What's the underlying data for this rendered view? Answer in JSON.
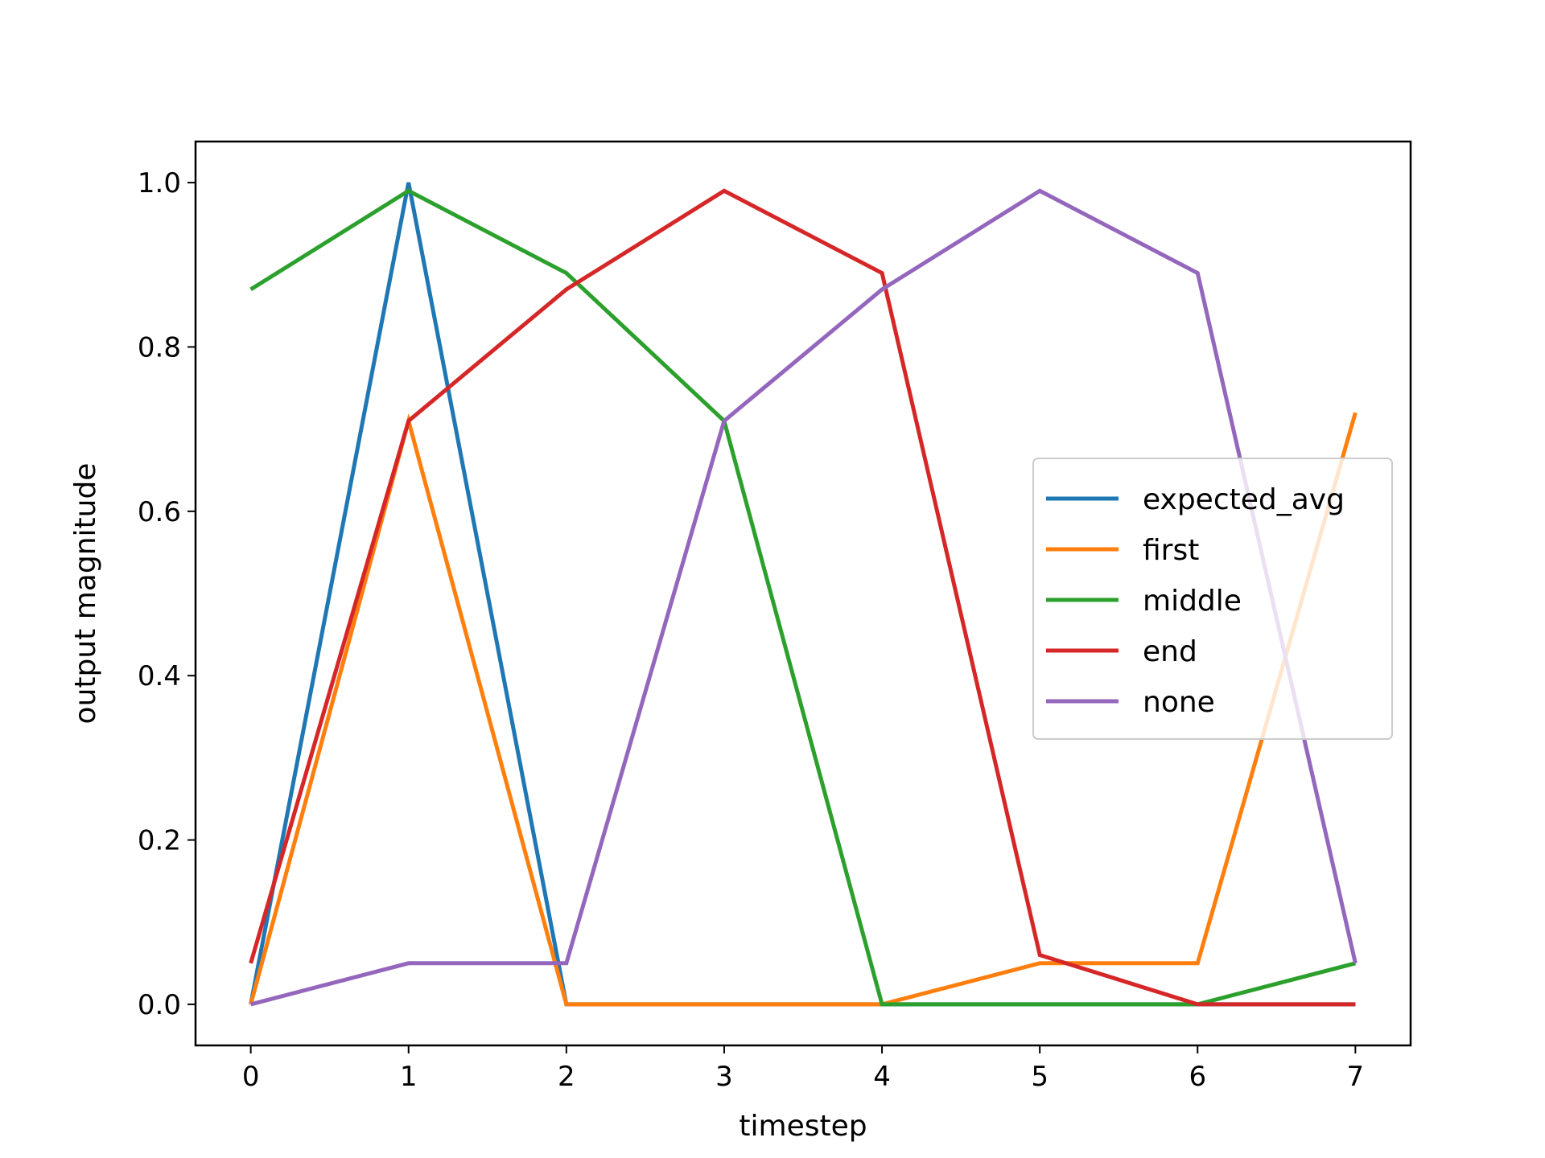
{
  "chart_data": {
    "type": "line",
    "title": "",
    "xlabel": "timestep",
    "ylabel": "output magnitude",
    "x": [
      0,
      1,
      2,
      3,
      4,
      5,
      6,
      7
    ],
    "xticks": [
      "0",
      "1",
      "2",
      "3",
      "4",
      "5",
      "6",
      "7"
    ],
    "yticks": [
      "0.0",
      "0.2",
      "0.4",
      "0.6",
      "0.8",
      "1.0"
    ],
    "xlim": [
      -0.35,
      7.35
    ],
    "ylim": [
      -0.05,
      1.05
    ],
    "grid": false,
    "legend_position": "center-right",
    "series": [
      {
        "name": "expected_avg",
        "color": "#1f77b4",
        "values": [
          0.0,
          1.0,
          0.0,
          0.0,
          0.0,
          0.0,
          0.0,
          0.0
        ]
      },
      {
        "name": "first",
        "color": "#ff7f0e",
        "values": [
          0.0,
          0.71,
          0.0,
          0.0,
          0.0,
          0.05,
          0.05,
          0.72
        ]
      },
      {
        "name": "middle",
        "color": "#2ca02c",
        "values": [
          0.87,
          0.99,
          0.89,
          0.71,
          0.0,
          0.0,
          0.0,
          0.05
        ]
      },
      {
        "name": "end",
        "color": "#d62728",
        "values": [
          0.05,
          0.71,
          0.87,
          0.99,
          0.89,
          0.06,
          0.0,
          0.0
        ]
      },
      {
        "name": "none",
        "color": "#9467bd",
        "values": [
          0.0,
          0.05,
          0.05,
          0.71,
          0.87,
          0.99,
          0.89,
          0.05
        ]
      }
    ]
  }
}
